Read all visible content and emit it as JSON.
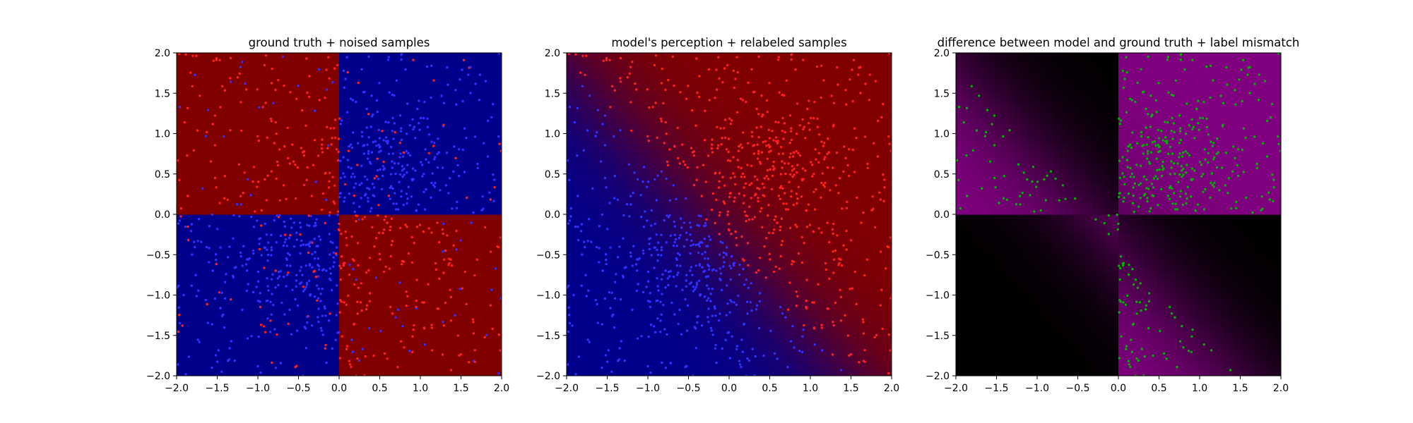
{
  "chart_data": [
    {
      "type": "heatmap",
      "title": "ground truth + noised samples",
      "xlim": [
        -2.0,
        2.0
      ],
      "ylim": [
        -2.0,
        2.0
      ],
      "x_ticks": [
        "−2.0",
        "−1.5",
        "−1.0",
        "−0.5",
        "0.0",
        "0.5",
        "1.0",
        "1.5",
        "2.0"
      ],
      "y_ticks": [
        "−2.0",
        "−1.5",
        "−1.0",
        "−0.5",
        "0.0",
        "0.5",
        "1.0",
        "1.5",
        "2.0"
      ],
      "background": "checkerboard: red where x<0,y>0 and x>0,y<0; blue otherwise",
      "background_colors": {
        "red": "#800000",
        "blue": "#00008b"
      },
      "point_colors": {
        "red": "#ff2020",
        "blue": "#3030ff"
      },
      "point_count_approx": 1000,
      "grid": false
    },
    {
      "type": "heatmap",
      "title": "model's perception + relabeled samples",
      "xlim": [
        -2.0,
        2.0
      ],
      "ylim": [
        -2.0,
        2.0
      ],
      "x_ticks": [
        "−2.0",
        "−1.5",
        "−1.0",
        "−0.5",
        "0.0",
        "0.5",
        "1.0",
        "1.5",
        "2.0"
      ],
      "y_ticks": [
        "−2.0",
        "−1.5",
        "−1.0",
        "−0.5",
        "0.0",
        "0.5",
        "1.0",
        "1.5",
        "2.0"
      ],
      "background": "smooth gradient: blue in lower-left, red elsewhere, diagonal soft boundary",
      "background_colors": {
        "red": "#800000",
        "blue": "#00008b"
      },
      "point_colors": {
        "red": "#ff2020",
        "blue": "#3030ff"
      },
      "point_count_approx": 1000,
      "grid": false
    },
    {
      "type": "heatmap",
      "title": "difference between model and ground truth + label mismatch",
      "xlim": [
        -2.0,
        2.0
      ],
      "ylim": [
        -2.0,
        2.0
      ],
      "x_ticks": [
        "−2.0",
        "−1.5",
        "−1.0",
        "−0.5",
        "0.0",
        "0.5",
        "1.0",
        "1.5",
        "2.0"
      ],
      "y_ticks": [
        "−2.0",
        "−1.5",
        "−1.0",
        "−0.5",
        "0.0",
        "0.5",
        "1.0",
        "1.5",
        "2.0"
      ],
      "background": "magenta where model and ground truth disagree, black where they agree",
      "background_colors": {
        "mismatch": "#800080",
        "match": "#000000"
      },
      "point_colors": {
        "mismatch": "#00b000"
      },
      "point_count_approx": 300,
      "grid": false
    }
  ]
}
